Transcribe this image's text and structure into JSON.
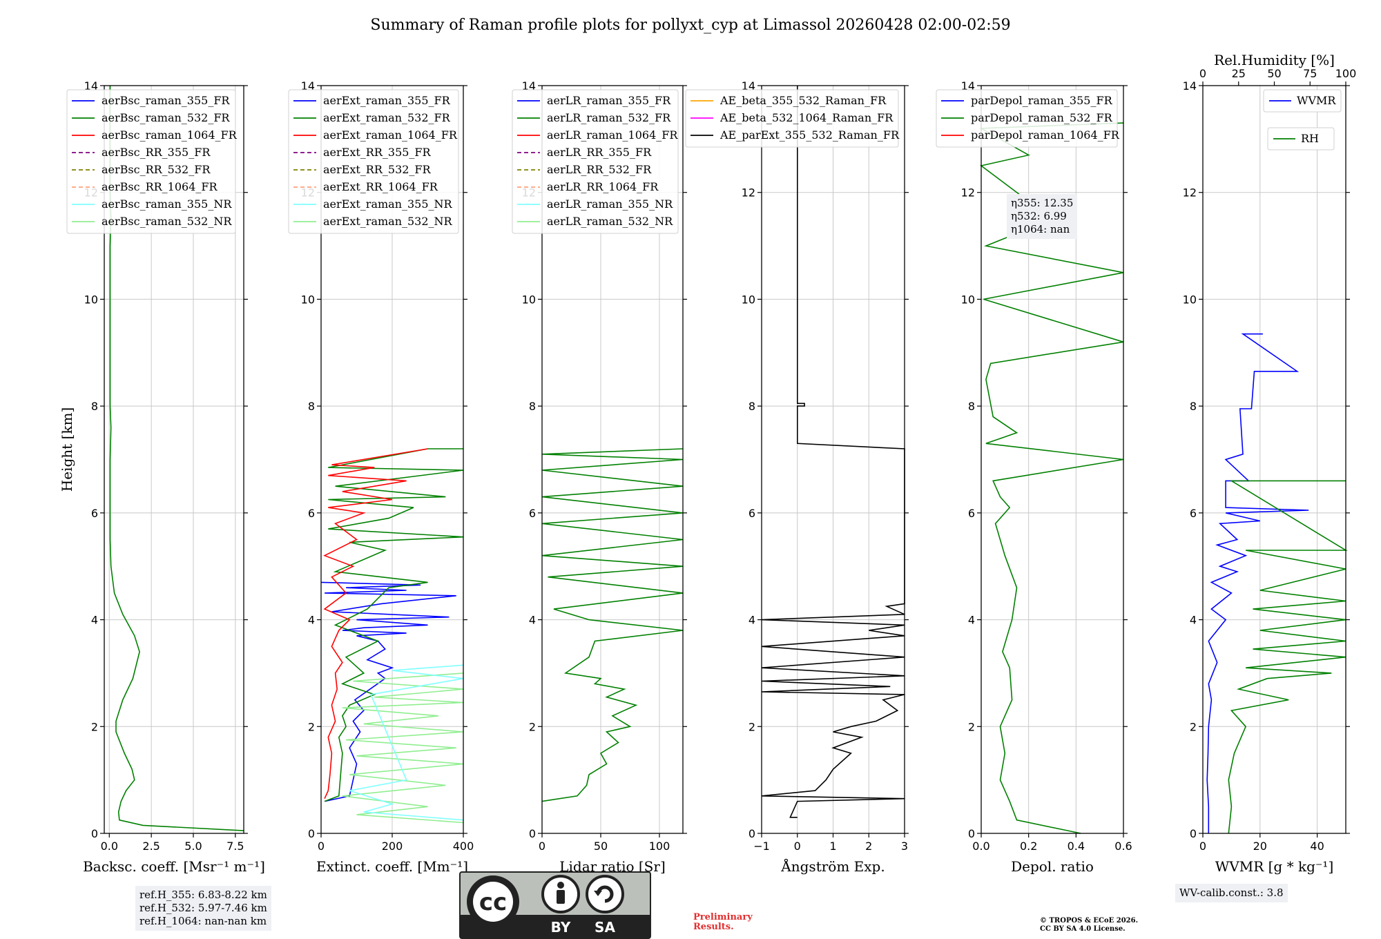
{
  "title": "Summary of Raman profile plots for pollyxt_cyp at Limassol 20260428 02:00-02:59",
  "ylabel": "Height [km]",
  "ylim": [
    0,
    14
  ],
  "yticks": [
    0,
    2,
    4,
    6,
    8,
    10,
    12,
    14
  ],
  "panels": [
    {
      "id": "bsc",
      "xlabel": "Backsc. coeff. [Msr⁻¹ m⁻¹]",
      "xlim": [
        -0.3,
        8
      ],
      "xticks": [
        0,
        2.5,
        5.0,
        7.5
      ],
      "xticklabels": [
        "0.0",
        "2.5",
        "5.0",
        "7.5"
      ],
      "legend": [
        "aerBsc_raman_355_FR",
        "aerBsc_raman_532_FR",
        "aerBsc_raman_1064_FR",
        "aerBsc_RR_355_FR",
        "aerBsc_RR_532_FR",
        "aerBsc_RR_1064_FR",
        "aerBsc_raman_355_NR",
        "aerBsc_raman_532_NR"
      ]
    },
    {
      "id": "ext",
      "xlabel": "Extinct. coeff. [Mm⁻¹]",
      "xlim": [
        0,
        400
      ],
      "xticks": [
        0,
        200,
        400
      ],
      "xticklabels": [
        "0",
        "200",
        "400"
      ],
      "legend": [
        "aerExt_raman_355_FR",
        "aerExt_raman_532_FR",
        "aerExt_raman_1064_FR",
        "aerExt_RR_355_FR",
        "aerExt_RR_532_FR",
        "aerExt_RR_1064_FR",
        "aerExt_raman_355_NR",
        "aerExt_raman_532_NR"
      ]
    },
    {
      "id": "lr",
      "xlabel": "Lidar ratio [Sr]",
      "xlim": [
        0,
        120
      ],
      "xticks": [
        0,
        50,
        100
      ],
      "xticklabels": [
        "0",
        "50",
        "100"
      ],
      "legend": [
        "aerLR_raman_355_FR",
        "aerLR_raman_532_FR",
        "aerLR_raman_1064_FR",
        "aerLR_RR_355_FR",
        "aerLR_RR_532_FR",
        "aerLR_RR_1064_FR",
        "aerLR_raman_355_NR",
        "aerLR_raman_532_NR"
      ]
    },
    {
      "id": "ae",
      "xlabel": "Ångström Exp.",
      "xlim": [
        -1,
        3
      ],
      "xticks": [
        -1,
        0,
        1,
        2,
        3
      ],
      "xticklabels": [
        "−1",
        "0",
        "1",
        "2",
        "3"
      ],
      "legend": [
        "AE_beta_355_532_Raman_FR",
        "AE_beta_532_1064_Raman_FR",
        "AE_parExt_355_532_Raman_FR"
      ]
    },
    {
      "id": "dep",
      "xlabel": "Depol. ratio",
      "xlim": [
        0,
        0.6
      ],
      "xticks": [
        0,
        0.2,
        0.4,
        0.6
      ],
      "xticklabels": [
        "0.0",
        "0.2",
        "0.4",
        "0.6"
      ],
      "legend": [
        "parDepol_raman_355_FR",
        "parDepol_raman_532_FR",
        "parDepol_raman_1064_FR"
      ]
    },
    {
      "id": "wv",
      "xlabel": "WVMR [g * kg⁻¹]",
      "xlim": [
        0,
        50
      ],
      "xticks": [
        0,
        20,
        40
      ],
      "xticklabels": [
        "0",
        "20",
        "40"
      ],
      "legend": [
        "WVMR",
        "RH"
      ],
      "top_axis": {
        "label": "Rel.Humidity [%]",
        "lim": [
          0,
          100
        ],
        "ticks": [
          0,
          25,
          50,
          75,
          100
        ],
        "ticklabels": [
          "0",
          "25",
          "50",
          "75",
          "100"
        ]
      }
    }
  ],
  "eta_lines": [
    "η355: 12.35",
    "η532: 6.99",
    "η1064: nan"
  ],
  "ref_lines": [
    "ref.H_355: 6.83-8.22 km",
    "ref.H_532: 5.97-7.46 km",
    "ref.H_1064: nan-nan km"
  ],
  "wv_calib": "WV-calib.const.: 3.8",
  "preliminary": [
    "Preliminary",
    "Results."
  ],
  "copyright": [
    "© TROPOS & ECoE 2026.",
    "CC BY SA 4.0 License."
  ],
  "license_badge": {
    "by": "BY",
    "sa": "SA"
  },
  "colors": {
    "c355": "#0000ff",
    "c532": "#008000",
    "c1064": "#ff0000",
    "rr355": "#800080",
    "rr532": "#808000",
    "rr1064": "#ffa07a",
    "nr355": "#80ffff",
    "nr532": "#90ee90",
    "ae1": "#ffa500",
    "ae2": "#ff00ff",
    "ae3": "#000000"
  },
  "chart_data": {
    "type": "line",
    "title": "Summary of Raman profile plots for pollyxt_cyp at Limassol 20260428 02:00-02:59",
    "ylabel": "Height [km]",
    "ylim": [
      0,
      14
    ],
    "series": [
      {
        "panel": "bsc",
        "name": "aerBsc_raman_532_FR",
        "color": "#008000",
        "x": [
          8.0,
          2.0,
          0.6,
          0.55,
          0.7,
          1.0,
          1.5,
          1.35,
          0.9,
          0.4,
          0.4,
          0.8,
          1.4,
          1.8,
          1.5,
          0.8,
          0.3,
          0.1,
          0.05,
          0.05,
          0.05,
          0.05,
          0.1,
          0.05,
          0.05,
          0.05,
          0.05,
          0.05,
          0.1,
          0.05,
          0.05,
          0.05
        ],
        "y": [
          0.05,
          0.15,
          0.25,
          0.4,
          0.6,
          0.8,
          1.0,
          1.2,
          1.5,
          1.9,
          2.1,
          2.5,
          2.9,
          3.4,
          3.7,
          4.1,
          4.5,
          5.0,
          5.5,
          6.0,
          6.5,
          7.0,
          7.6,
          8.0,
          9.0,
          10.0,
          10.5,
          11.0,
          11.5,
          12.0,
          13.0,
          14.0
        ]
      },
      {
        "panel": "ext",
        "name": "aerExt_raman_355_FR",
        "color": "#0000ff",
        "x": [
          10,
          80,
          90,
          100,
          80,
          110,
          90,
          120,
          95,
          180,
          160,
          200,
          130,
          180,
          160,
          100,
          240,
          60,
          120,
          300,
          100,
          360,
          30,
          170,
          380,
          10,
          240,
          70,
          280,
          0
        ],
        "y": [
          0.6,
          0.7,
          1.0,
          1.3,
          1.6,
          1.9,
          2.1,
          2.3,
          2.5,
          2.9,
          3.0,
          3.1,
          3.25,
          3.45,
          3.6,
          3.7,
          3.75,
          3.8,
          3.85,
          3.9,
          4.0,
          4.05,
          4.15,
          4.3,
          4.45,
          4.5,
          4.55,
          4.6,
          4.65,
          4.7
        ]
      },
      {
        "panel": "ext",
        "name": "aerExt_raman_532_FR",
        "color": "#008000",
        "x": [
          10,
          50,
          55,
          60,
          50,
          70,
          60,
          80,
          150,
          60,
          120,
          70,
          160,
          40,
          130,
          190,
          300,
          40,
          180,
          80,
          400,
          20,
          190,
          260,
          20,
          350,
          40,
          400,
          20,
          300,
          400
        ],
        "y": [
          0.6,
          0.7,
          1.1,
          1.5,
          1.8,
          2.0,
          2.2,
          2.4,
          2.6,
          2.8,
          3.0,
          3.3,
          3.6,
          3.9,
          4.2,
          4.6,
          4.7,
          4.9,
          5.3,
          5.45,
          5.55,
          5.7,
          5.9,
          6.1,
          6.25,
          6.3,
          6.5,
          6.8,
          6.85,
          7.2,
          7.2
        ]
      },
      {
        "panel": "ext",
        "name": "aerExt_raman_1064_FR",
        "color": "#ff0000",
        "x": [
          10,
          20,
          25,
          30,
          20,
          40,
          30,
          45,
          40,
          60,
          30,
          50,
          80,
          10,
          70,
          30,
          90,
          10,
          100,
          40,
          120,
          20,
          200,
          60,
          240,
          20,
          150,
          30,
          300
        ],
        "y": [
          0.65,
          0.8,
          1.1,
          1.5,
          1.8,
          2.1,
          2.4,
          2.7,
          3.0,
          3.2,
          3.5,
          3.8,
          4.0,
          4.2,
          4.5,
          4.8,
          5.0,
          5.2,
          5.5,
          5.8,
          6.0,
          6.1,
          6.25,
          6.4,
          6.6,
          6.7,
          6.85,
          6.9,
          7.2
        ]
      },
      {
        "panel": "ext",
        "name": "aerExt_raman_532_NR",
        "color": "#90ee90",
        "x": [
          400,
          100,
          300,
          60,
          350,
          80,
          400,
          100,
          380,
          70,
          400,
          120,
          330,
          60,
          400,
          150,
          400,
          90,
          400
        ],
        "y": [
          0.2,
          0.35,
          0.5,
          0.7,
          0.9,
          1.1,
          1.3,
          1.45,
          1.6,
          1.75,
          1.9,
          2.05,
          2.2,
          2.35,
          2.45,
          2.55,
          2.7,
          2.85,
          3.0
        ]
      },
      {
        "panel": "ext",
        "name": "aerExt_raman_355_NR",
        "color": "#80ffff",
        "x": [
          400,
          120,
          200,
          80,
          240,
          140,
          400,
          200,
          400
        ],
        "y": [
          0.25,
          0.4,
          0.55,
          0.8,
          1.0,
          2.6,
          2.9,
          3.05,
          3.15
        ]
      },
      {
        "panel": "lr",
        "name": "aerLR_raman_532_FR",
        "color": "#008000",
        "x": [
          0,
          30,
          38,
          40,
          55,
          50,
          65,
          55,
          75,
          60,
          80,
          55,
          70,
          45,
          50,
          20,
          40,
          45,
          120,
          40,
          10,
          120,
          5,
          120,
          0,
          120,
          0,
          120,
          0,
          120,
          0,
          120,
          0,
          120
        ],
        "y": [
          0.6,
          0.7,
          0.9,
          1.1,
          1.3,
          1.5,
          1.7,
          1.9,
          2.0,
          2.2,
          2.4,
          2.55,
          2.7,
          2.8,
          2.9,
          3.0,
          3.3,
          3.6,
          3.8,
          4.0,
          4.2,
          4.5,
          4.8,
          5.0,
          5.2,
          5.5,
          5.8,
          6.0,
          6.3,
          6.5,
          6.8,
          7.0,
          7.1,
          7.2
        ]
      },
      {
        "panel": "ae",
        "name": "AE_parExt_355_532_Raman_FR",
        "color": "#000000",
        "x": [
          0,
          -0.2,
          0,
          3,
          -1,
          0.5,
          0.8,
          1.0,
          1.5,
          1.0,
          1.8,
          1.0,
          1.5,
          2.2,
          2.8,
          2.4,
          3.0,
          -1,
          2.6,
          -1,
          3,
          -1,
          3,
          -1,
          3,
          2.0,
          3,
          -1,
          3,
          2.5,
          3,
          3,
          0,
          0,
          0.2,
          0.2,
          0,
          0,
          0
        ],
        "y": [
          0.3,
          0.3,
          0.6,
          0.65,
          0.7,
          0.8,
          1.0,
          1.2,
          1.5,
          1.6,
          1.8,
          1.9,
          2.0,
          2.1,
          2.3,
          2.5,
          2.6,
          2.65,
          2.75,
          2.85,
          2.95,
          3.1,
          3.3,
          3.5,
          3.7,
          3.8,
          3.9,
          4.0,
          4.1,
          4.25,
          4.3,
          7.2,
          7.3,
          8.0,
          8.0,
          8.05,
          8.05,
          8.1,
          14
        ]
      },
      {
        "panel": "dep",
        "name": "parDepol_raman_532_FR",
        "color": "#008000",
        "x": [
          0.42,
          0.15,
          0.12,
          0.08,
          0.1,
          0.08,
          0.13,
          0.12,
          0.09,
          0.13,
          0.15,
          0.1,
          0.06,
          0.12,
          0.08,
          0.05,
          0.6,
          0.02,
          0.15,
          0.05,
          0.02,
          0.04,
          0.6,
          0.01,
          0.6,
          0.02,
          0.3,
          0.0,
          0.2,
          0.0,
          0.6
        ],
        "y": [
          0.0,
          0.25,
          0.6,
          1.0,
          1.5,
          2.0,
          2.5,
          3.1,
          3.4,
          4.0,
          4.6,
          5.2,
          5.8,
          6.1,
          6.3,
          6.6,
          7.0,
          7.3,
          7.5,
          7.8,
          8.5,
          8.8,
          9.2,
          10.0,
          10.5,
          11.0,
          11.5,
          12.5,
          12.7,
          13.2,
          13.3
        ]
      },
      {
        "panel": "wv",
        "name": "WVMR",
        "color": "#0000ff",
        "x": [
          2,
          2,
          1.5,
          1.8,
          2,
          3,
          2,
          5,
          2,
          8,
          3,
          10,
          3,
          12,
          6,
          15,
          5,
          12,
          6,
          20,
          8,
          37,
          8,
          8,
          16,
          8,
          14,
          13,
          17,
          18,
          33,
          14,
          21
        ],
        "y": [
          0.0,
          0.5,
          1.0,
          1.5,
          2.0,
          2.5,
          2.8,
          3.2,
          3.6,
          4.0,
          4.2,
          4.5,
          4.7,
          4.9,
          5.0,
          5.2,
          5.4,
          5.5,
          5.8,
          5.85,
          6.0,
          6.05,
          6.1,
          6.6,
          6.6,
          7.0,
          7.1,
          7.95,
          7.95,
          8.65,
          8.65,
          9.35,
          9.35
        ]
      },
      {
        "panel": "wv",
        "name": "RH",
        "color": "#008000",
        "x_unit": "percent",
        "x": [
          18,
          20,
          18,
          22,
          30,
          20,
          60,
          25,
          45,
          90,
          30,
          100,
          35,
          100,
          40,
          100,
          35,
          100,
          40,
          100,
          30,
          100,
          20,
          100
        ],
        "y": [
          0.0,
          0.5,
          1.0,
          1.5,
          2.0,
          2.3,
          2.5,
          2.7,
          2.9,
          3.0,
          3.1,
          3.3,
          3.45,
          3.6,
          3.8,
          4.0,
          4.2,
          4.35,
          4.55,
          4.95,
          5.3,
          5.3,
          6.6,
          6.6
        ]
      },
      {
        "panel": "bsc",
        "name": "aerBsc_raman_355_FR",
        "color": "#0000ff",
        "x": [],
        "y": []
      },
      {
        "panel": "dep",
        "name": "parDepol_raman_355_FR",
        "color": "#0000ff",
        "x": [],
        "y": []
      }
    ]
  }
}
